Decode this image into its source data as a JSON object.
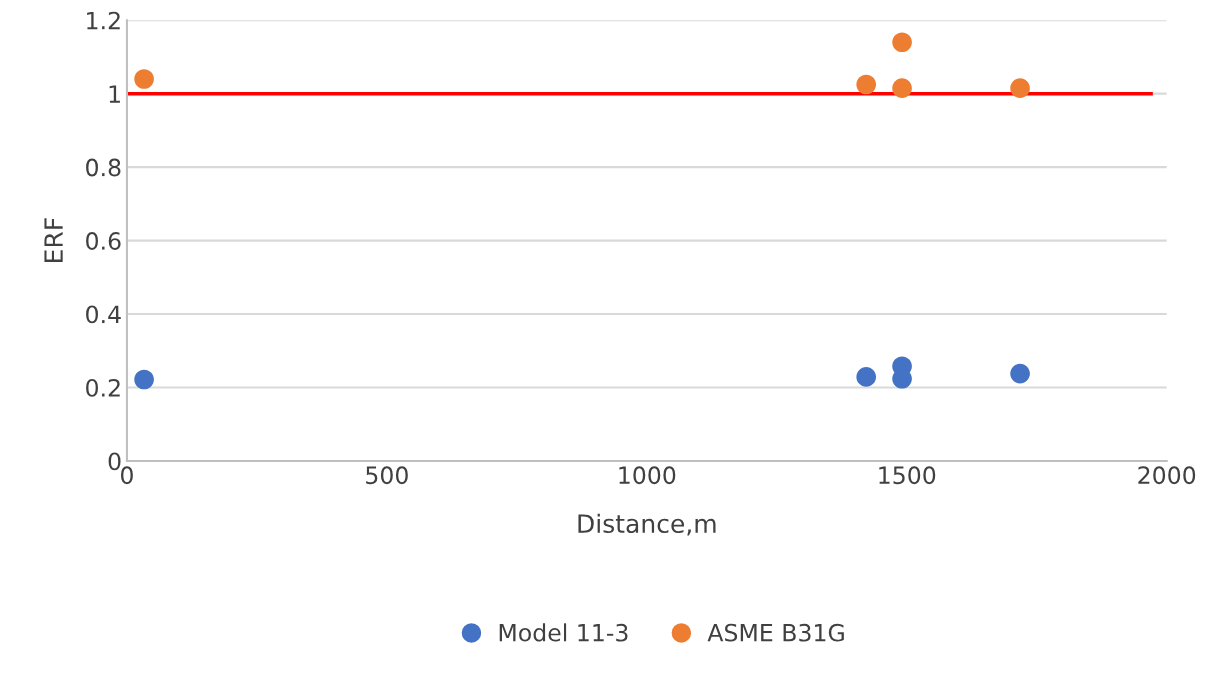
{
  "chart_data": {
    "type": "scatter",
    "xlabel": "Distance,m",
    "ylabel": "ERF",
    "xlim": [
      0,
      2000
    ],
    "xticks": [
      0,
      500,
      1000,
      1500,
      2000
    ],
    "ylim": [
      0,
      1.2
    ],
    "yticks": [
      {
        "value": 0,
        "label": "0"
      },
      {
        "value": 0.2,
        "label": "0.2"
      },
      {
        "value": 0.4,
        "label": "0.4"
      },
      {
        "value": 0.6,
        "label": "0.6"
      },
      {
        "value": 0.8,
        "label": "0.8"
      },
      {
        "value": 1,
        "label": "1"
      },
      {
        "value": 1.2,
        "label": "1.2"
      }
    ],
    "grid": "y",
    "legend": "bottom",
    "marker": "circle",
    "series": [
      {
        "type": "line",
        "marker": "none",
        "color": "#ff0000",
        "x": [
          0,
          1970
        ],
        "values": [
          1,
          1
        ]
      },
      {
        "name": "Model 11-3",
        "color": "#4472c4",
        "x": [
          33,
          1422,
          1491,
          1491,
          1718
        ],
        "values": [
          0.222,
          0.229,
          0.258,
          0.224,
          0.238
        ]
      },
      {
        "name": "ASME B31G",
        "color": "#ed7d31",
        "x": [
          33,
          1422,
          1491,
          1491,
          1718
        ],
        "values": [
          1.04,
          1.025,
          1.14,
          1.015,
          1.015
        ]
      }
    ]
  }
}
